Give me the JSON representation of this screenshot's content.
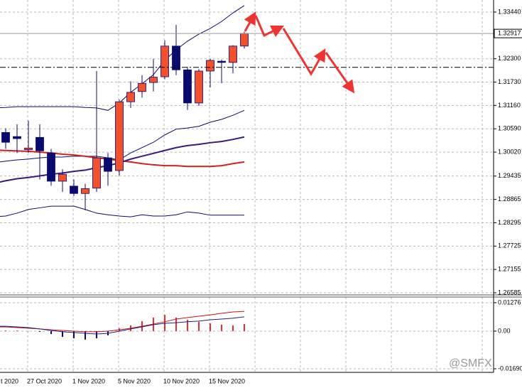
{
  "chart_data": [
    {
      "type": "candlestick",
      "categories": [
        "t 2020",
        null,
        null,
        null,
        "27 Oct 2020",
        null,
        null,
        null,
        "1 Nov 2020",
        null,
        null,
        null,
        "5 Nov 2020",
        null,
        null,
        null,
        "10 Nov 2020",
        null,
        null,
        null,
        "15 Nov 2020",
        null,
        null,
        null
      ],
      "open": [
        null,
        null,
        1.305,
        1.304,
        1.3008,
        1.3038,
        1.3,
        1.2931,
        1.2919,
        1.2901,
        1.2914,
        1.2988,
        1.2957,
        1.3125,
        1.315,
        1.3172,
        1.3186,
        1.3261,
        1.3203,
        1.3122,
        1.32,
        1.3224,
        1.3221,
        1.3261
      ],
      "high": [
        null,
        null,
        1.306,
        1.307,
        1.3079,
        1.307,
        1.301,
        1.296,
        1.2935,
        1.2925,
        1.32,
        1.3,
        1.313,
        1.3175,
        1.319,
        1.323,
        1.3275,
        1.3313,
        1.321,
        1.3205,
        1.323,
        1.3228,
        1.3263,
        1.3296
      ],
      "low": [
        null,
        null,
        1.301,
        1.3,
        1.3,
        1.2935,
        1.292,
        1.2905,
        1.2895,
        1.286,
        1.2905,
        1.292,
        1.2945,
        1.311,
        1.3135,
        1.315,
        1.318,
        1.319,
        1.3105,
        1.3115,
        1.316,
        1.317,
        1.3195,
        1.3255
      ],
      "close": [
        null,
        null,
        1.3026,
        1.3035,
        1.3012,
        1.3005,
        1.2931,
        1.2948,
        1.2901,
        1.2913,
        1.2988,
        1.2955,
        1.3125,
        1.3148,
        1.317,
        1.3185,
        1.3261,
        1.3203,
        1.3122,
        1.32,
        1.3226,
        1.3221,
        1.3261,
        1.3292
      ],
      "up_color": "#f2522b",
      "down_color": "#0b0b6e",
      "overlays": [
        {
          "color": "#0b0b6e",
          "width": 1,
          "values": [
            null,
            1.311,
            1.3111,
            1.3113,
            1.3113,
            1.3113,
            1.3113,
            1.3113,
            1.3113,
            1.3111,
            1.311,
            1.3104,
            1.3122,
            1.3148,
            1.3169,
            1.3191,
            1.3226,
            1.3252,
            1.3273,
            1.329,
            1.3304,
            1.3321,
            1.3342,
            1.336
          ]
        },
        {
          "color": "#0b0b6e",
          "width": 1,
          "values": [
            null,
            1.2976,
            1.298,
            1.2983,
            1.2985,
            1.2988,
            1.299,
            1.299,
            1.2992,
            1.2992,
            1.2992,
            1.2988,
            1.2983,
            1.3,
            1.3013,
            1.3026,
            1.3044,
            1.3058,
            1.3061,
            1.3065,
            1.3075,
            1.3082,
            1.3092,
            1.3104
          ]
        },
        {
          "color": "#0b0b6e",
          "width": 1,
          "values": [
            null,
            1.2844,
            1.2846,
            1.2853,
            1.2862,
            1.2866,
            1.287,
            1.287,
            1.287,
            1.2862,
            1.2853,
            1.2849,
            1.2846,
            1.2844,
            1.2849,
            1.2846,
            1.2846,
            1.2849,
            1.2856,
            1.2853,
            1.2848,
            1.2848,
            1.2848,
            1.2848
          ]
        },
        {
          "color": "#d42020",
          "width": 2,
          "values": [
            null,
            1.3007,
            1.3006,
            1.3005,
            1.3004,
            1.3002,
            1.3,
            1.2997,
            1.2995,
            1.2992,
            1.2988,
            1.2985,
            1.2981,
            1.2978,
            1.2974,
            1.2971,
            1.2969,
            1.2969,
            1.2967,
            1.2967,
            1.2967,
            1.2969,
            1.2974,
            1.2978
          ]
        },
        {
          "color": "#3a1a7a",
          "width": 2,
          "values": [
            null,
            1.2926,
            1.2932,
            1.2937,
            1.294,
            1.2944,
            1.2948,
            1.2951,
            1.2955,
            1.2958,
            1.2964,
            1.2969,
            1.2976,
            1.2985,
            1.2992,
            1.2999,
            1.3006,
            1.3013,
            1.3018,
            1.3021,
            1.3025,
            1.3028,
            1.3033,
            1.3039
          ]
        }
      ],
      "current_price": 1.32917,
      "levels": [
        1.3209
      ],
      "ylim": [
        1.26533,
        1.33735
      ],
      "yticks": [
        {
          "value": 1.3344,
          "label": "1.33440"
        },
        {
          "value": 1.323,
          "label": "1.32300"
        },
        {
          "value": 1.3173,
          "label": "1.31730"
        },
        {
          "value": 1.3116,
          "label": "1.31160"
        },
        {
          "value": 1.3059,
          "label": "1.30590"
        },
        {
          "value": 1.3002,
          "label": "1.30020"
        },
        1.29435,
        1.28865,
        1.28295,
        1.27725,
        1.27155,
        1.26585
      ],
      "grid": true
    },
    {
      "type": "bar",
      "values": [
        null,
        null,
        0.0003,
        0.0003,
        0,
        -0.0003,
        -0.0013,
        -0.0026,
        -0.0032,
        -0.0038,
        -0.0032,
        -0.0019,
        0.0013,
        0.0026,
        0.0045,
        0.0061,
        0.0073,
        0.0061,
        0.0051,
        0.0042,
        0.0035,
        0.0029,
        0.0026,
        0.0032
      ],
      "up_color": "#e03030",
      "down_color": "#0b0b6e",
      "lines": [
        {
          "color": "#cc1111",
          "values": [
            null,
            0.0019,
            0.0019,
            0.0016,
            0.0013,
            0.001,
            0.0006,
            0.0003,
            0.0,
            -0.0003,
            -0.0003,
            0.0,
            0.0006,
            0.0013,
            0.0022,
            0.0032,
            0.0042,
            0.0054,
            0.0061,
            0.0067,
            0.0073,
            0.008,
            0.0086,
            0.0089
          ]
        },
        {
          "color": "#1a237e",
          "values": [
            null,
            0.0022,
            0.0022,
            0.0019,
            0.0016,
            0.001,
            0.0003,
            -0.0003,
            -0.0006,
            -0.001,
            -0.0013,
            -0.001,
            0.0,
            0.001,
            0.0019,
            0.0029,
            0.0035,
            0.0038,
            0.0042,
            0.0045,
            0.0051,
            0.0054,
            0.0058,
            0.0064
          ]
        }
      ],
      "ylim": [
        -0.0185,
        0.0153
      ],
      "yticks": [
        0.01276,
        {
          "value": 0,
          "label": "0.00"
        },
        {
          "value": -0.0169,
          "label": "-0.01690"
        }
      ],
      "grid": true
    }
  ],
  "watermark": "@SMFX"
}
